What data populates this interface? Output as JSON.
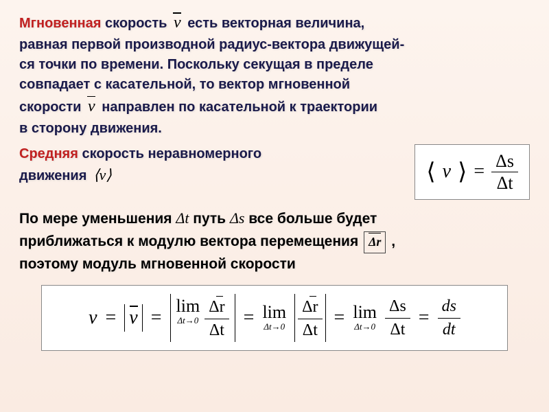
{
  "colors": {
    "highlight": "#c02020",
    "body_text": "#1a1a4a",
    "body_text2": "#000000",
    "bg_top": "#fdf4ee",
    "bg_bottom": "#faebe2",
    "box_border": "#888888",
    "box_bg": "#ffffff"
  },
  "fonts": {
    "body": "Arial",
    "math": "Times New Roman",
    "body_size_pt": 20,
    "math_size_pt": 28,
    "weight": "bold"
  },
  "p1": {
    "w1": "Мгновенная",
    "w2": "скорость",
    "sym_v": "v",
    "t1": "есть векторная величина,",
    "t2": "равная первой производной радиус-вектора движущей-",
    "t3": "ся точки по времени. Поскольку секущая в пределе",
    "t4": "совпадает с касательной, то вектор мгновенной",
    "t5": "скорости",
    "t6": "направлен по касательной к траектории",
    "t7": "в сторону движения."
  },
  "p2": {
    "w1": "Средняя",
    "t1": "скорость неравномерного",
    "t2": "движения",
    "sym_v": "v"
  },
  "formula1": {
    "lhs": "v",
    "num": "Δs",
    "den": "Δt"
  },
  "p3": {
    "t1": "По мере уменьшения",
    "dt": "Δt",
    "t2": "путь",
    "ds": "Δs",
    "t3": "все больше будет",
    "t4": "приближаться к модулю вектора перемещения",
    "dr": "Δr",
    "comma": ",",
    "t5": "поэтому модуль мгновенной скорости"
  },
  "formula2": {
    "v": "v",
    "eq": "=",
    "lim": "lim",
    "lim_sub": "Δt→0",
    "dr": "Δr",
    "dt": "Δt",
    "ds_num": "Δs",
    "ds_den": "Δt",
    "final_num": "ds",
    "final_den": "dt"
  }
}
